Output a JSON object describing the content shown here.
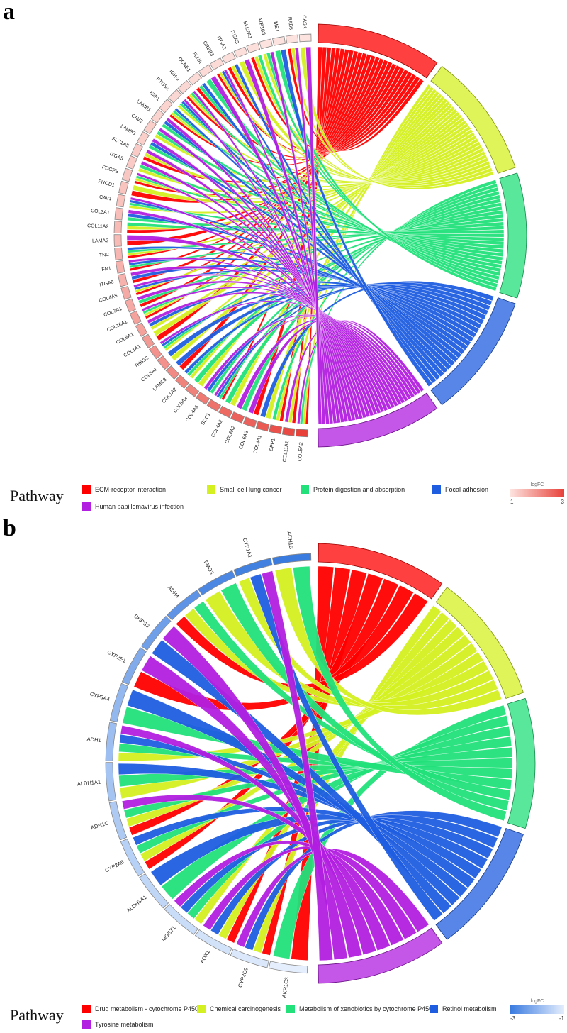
{
  "panels": [
    {
      "letter": "a",
      "genes": [
        "COL5A2",
        "COL11A1",
        "SPP1",
        "COL4A1",
        "COL6A3",
        "COL6A2",
        "COL4A2",
        "SDC1",
        "COL4A6",
        "COL5A3",
        "COL1A2",
        "LAMC3",
        "COL5A1",
        "THBS2",
        "COL1A1",
        "COL8A1",
        "COL16A1",
        "COL7A1",
        "COL4A5",
        "ITGA6",
        "FN1",
        "TNC",
        "LAMA2",
        "COL11A2",
        "COL3A1",
        "CAV1",
        "FHOD1",
        "PDGFB",
        "ITGA5",
        "SLC1A5",
        "LAMB3",
        "CAV2",
        "LAMB1",
        "E2F1",
        "PTGS2",
        "IGHG",
        "CCNE1",
        "FLNA",
        "CREB3",
        "ITGA2",
        "ITGA3",
        "SLC2A1",
        "ATP1B3",
        "MET",
        "RAB6",
        "CASK"
      ],
      "gene_fc": [
        3,
        2.9,
        2.8,
        2.7,
        2.6,
        2.6,
        2.5,
        2.4,
        2.3,
        2.2,
        2.2,
        2.1,
        2.0,
        2.0,
        1.9,
        1.8,
        1.8,
        1.7,
        1.7,
        1.6,
        1.6,
        1.55,
        1.5,
        1.5,
        1.45,
        1.4,
        1.4,
        1.35,
        1.3,
        1.3,
        1.25,
        1.25,
        1.2,
        1.2,
        1.15,
        1.15,
        1.1,
        1.1,
        1.1,
        1.05,
        1.05,
        1.05,
        1.0,
        1.0,
        1.0,
        1.0
      ],
      "scale": {
        "title": "logFC",
        "min_label": "1",
        "max_label": "3",
        "low_color": "#fde3df",
        "high_color": "#e8413a"
      },
      "pathways": [
        {
          "label": "ECM-receptor interaction",
          "color": "#ff0000"
        },
        {
          "label": "Small cell lung cancer",
          "color": "#d4f020"
        },
        {
          "label": "Protein digestion and absorption",
          "color": "#22e07a"
        },
        {
          "label": "Focal adhesion",
          "color": "#1f5de0"
        },
        {
          "label": "Human papillomavirus infection",
          "color": "#b21fe0"
        }
      ],
      "legend_title": "Pathway"
    },
    {
      "letter": "b",
      "genes": [
        "AKR1C3",
        "CYP2C9",
        "AOX1",
        "MGST1",
        "ALDH3A1",
        "CYP2A6",
        "ADH1C",
        "ALDH1A1",
        "ADH1",
        "CYP3A4",
        "CYP2E1",
        "DHRS9",
        "ADH4",
        "FMO3",
        "CYP1A1",
        "ADH1B"
      ],
      "gene_fc": [
        -1.1,
        -1.2,
        -1.3,
        -1.4,
        -1.5,
        -1.6,
        -1.7,
        -1.8,
        -1.9,
        -2.0,
        -2.2,
        -2.4,
        -2.6,
        -2.8,
        -2.9,
        -3.0
      ],
      "scale": {
        "title": "logFC",
        "min_label": "-3",
        "max_label": "-1",
        "low_color": "#3a7be0",
        "high_color": "#e4eefc"
      },
      "pathways": [
        {
          "label": "Drug metabolism - cytochrome P450",
          "color": "#ff0000"
        },
        {
          "label": "Chemical carcinogenesis",
          "color": "#d4f020"
        },
        {
          "label": "Metabolism of xenobiotics by cytochrome P450",
          "color": "#22e07a"
        },
        {
          "label": "Retinol metabolism",
          "color": "#1f5de0"
        },
        {
          "label": "Tyrosine metabolism",
          "color": "#b21fe0"
        }
      ],
      "legend_title": "Pathway"
    }
  ]
}
